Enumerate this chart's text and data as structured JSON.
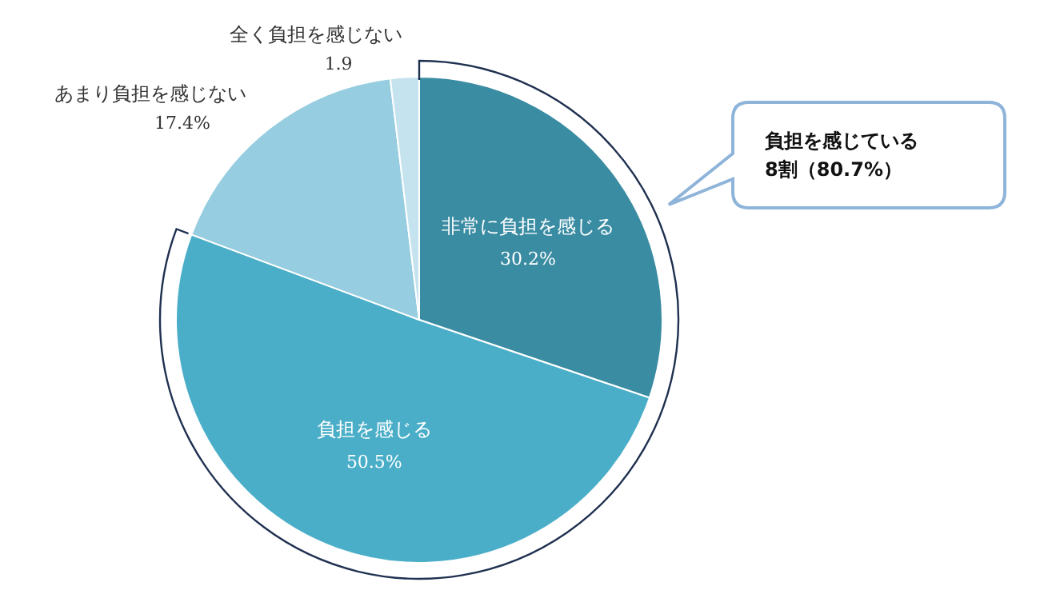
{
  "chart_data": {
    "type": "pie",
    "categories": [
      "非常に負担を感じる",
      "負担を感じる",
      "あまり負担を感じない",
      "全く負担を感じない"
    ],
    "values": [
      30.2,
      50.5,
      17.4,
      1.9
    ],
    "value_labels": [
      "30.2%",
      "50.5%",
      "17.4%",
      "1.9"
    ],
    "colors": [
      "#3a8ca3",
      "#4aaec8",
      "#96cde0",
      "#c5e3ee"
    ],
    "annotations": [
      "負担を感じている\n8割（80.7%）"
    ]
  }
}
